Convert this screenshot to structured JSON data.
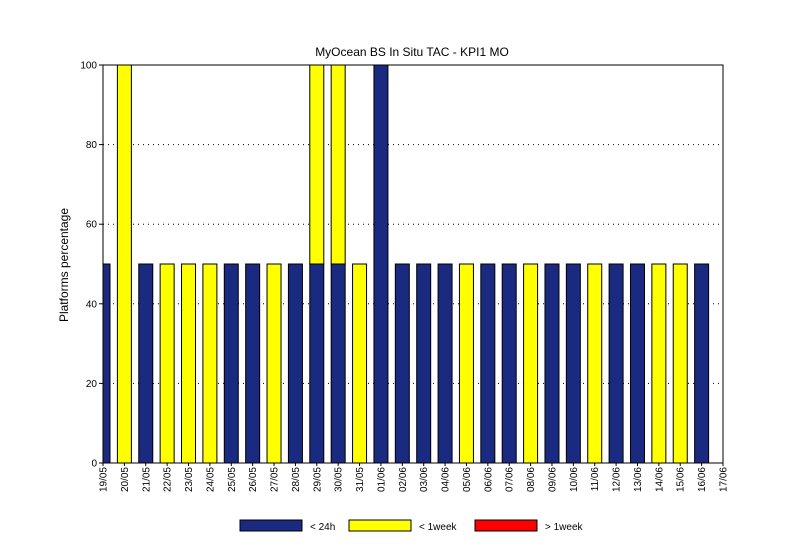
{
  "chart_data": {
    "type": "bar",
    "stacked": true,
    "title": "MyOcean  BS In Situ TAC - KPI1  MO",
    "xlabel": "",
    "ylabel": "Platforms percentage",
    "ylim": [
      0,
      100
    ],
    "yticks": [
      0,
      20,
      40,
      60,
      80,
      100
    ],
    "grid": "horizontal dotted",
    "legend_position": "bottom",
    "categories": [
      "19/05",
      "20/05",
      "21/05",
      "22/05",
      "23/05",
      "24/05",
      "25/05",
      "26/05",
      "27/05",
      "28/05",
      "29/05",
      "30/05",
      "31/05",
      "01/06",
      "02/06",
      "03/06",
      "04/06",
      "05/06",
      "06/06",
      "07/06",
      "08/06",
      "09/06",
      "10/06",
      "11/06",
      "12/06",
      "13/06",
      "14/06",
      "15/06",
      "16/06",
      "17/06"
    ],
    "series": [
      {
        "name": "< 24h",
        "color": "#1a2a80",
        "values": [
          50,
          0,
          50,
          0,
          0,
          0,
          50,
          50,
          0,
          50,
          50,
          50,
          0,
          100,
          50,
          50,
          50,
          0,
          50,
          50,
          0,
          50,
          50,
          0,
          50,
          50,
          0,
          0,
          50,
          0
        ]
      },
      {
        "name": "< 1week",
        "color": "#ffff00",
        "values": [
          0,
          100,
          0,
          50,
          50,
          50,
          0,
          0,
          50,
          0,
          50,
          50,
          50,
          0,
          0,
          0,
          0,
          50,
          0,
          0,
          50,
          0,
          0,
          50,
          0,
          0,
          50,
          50,
          0,
          0
        ]
      },
      {
        "name": "> 1week",
        "color": "#ff0000",
        "values": [
          0,
          0,
          0,
          0,
          0,
          0,
          0,
          0,
          0,
          0,
          0,
          0,
          0,
          0,
          0,
          0,
          0,
          0,
          0,
          0,
          0,
          0,
          0,
          0,
          0,
          0,
          0,
          0,
          0,
          0
        ]
      }
    ]
  }
}
